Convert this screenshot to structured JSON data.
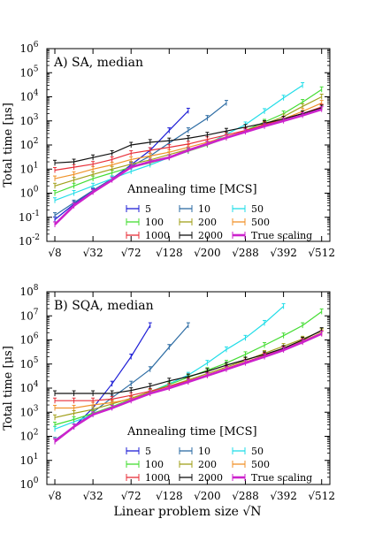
{
  "x_axis_label": "Linear problem size √N",
  "chart_data": [
    {
      "type": "line",
      "title": "A) SA, median",
      "ylabel": "Total time [μs]",
      "yscale": "log",
      "ylim": [
        0.01,
        1000000
      ],
      "ytick_exponents": [
        -2,
        -1,
        0,
        1,
        2,
        3,
        4,
        5,
        6
      ],
      "xscale": "sqrt",
      "x_ticks": [
        8,
        32,
        72,
        128,
        200,
        288,
        392,
        512
      ],
      "x_tick_labels": [
        "√8",
        "√32",
        "√72",
        "√128",
        "√200",
        "√288",
        "√392",
        "√512"
      ],
      "legend_title": "Annealing time [MCS]",
      "legend_location": "lower-center",
      "series": [
        {
          "name": "5",
          "color": "#1f1fd6",
          "x": [
            8,
            18,
            32,
            50,
            72,
            98,
            128,
            162
          ],
          "y": [
            0.08,
            0.35,
            1.2,
            4,
            15,
            60,
            400,
            2600
          ]
        },
        {
          "name": "10",
          "color": "#2e6da4",
          "x": [
            8,
            18,
            32,
            50,
            72,
            98,
            128,
            162,
            200,
            242
          ],
          "y": [
            0.12,
            0.4,
            1.3,
            4,
            13,
            35,
            120,
            400,
            1300,
            5500
          ]
        },
        {
          "name": "50",
          "color": "#22dde8",
          "x": [
            8,
            18,
            32,
            50,
            72,
            98,
            128,
            162,
            200,
            242,
            288,
            338,
            392,
            450
          ],
          "y": [
            0.5,
            1,
            2,
            4,
            8,
            15,
            30,
            55,
            110,
            280,
            700,
            2500,
            9000,
            30000
          ]
        },
        {
          "name": "100",
          "color": "#44dd33",
          "x": [
            8,
            18,
            32,
            50,
            72,
            98,
            128,
            162,
            200,
            242,
            288,
            338,
            392,
            450,
            512
          ],
          "y": [
            1,
            2,
            4,
            7,
            12,
            18,
            30,
            55,
            100,
            200,
            400,
            900,
            2000,
            6000,
            20000
          ]
        },
        {
          "name": "200",
          "color": "#a2a01c",
          "x": [
            8,
            18,
            32,
            50,
            72,
            98,
            128,
            162,
            200,
            242,
            288,
            338,
            392,
            450,
            512
          ],
          "y": [
            2,
            3.5,
            6,
            10,
            16,
            24,
            40,
            65,
            110,
            200,
            370,
            750,
            1500,
            4000,
            10000
          ]
        },
        {
          "name": "500",
          "color": "#f0922a",
          "x": [
            8,
            18,
            32,
            50,
            72,
            98,
            128,
            162,
            200,
            242,
            288,
            338,
            392,
            450,
            512
          ],
          "y": [
            4,
            6,
            10,
            15,
            25,
            35,
            50,
            80,
            130,
            220,
            380,
            700,
            1200,
            2500,
            5500
          ]
        },
        {
          "name": "1000",
          "color": "#e8303a",
          "x": [
            8,
            18,
            32,
            50,
            72,
            98,
            128,
            162,
            200,
            242,
            288,
            338,
            392,
            450,
            512
          ],
          "y": [
            9,
            12,
            16,
            25,
            45,
            60,
            80,
            110,
            170,
            260,
            400,
            700,
            1200,
            2000,
            3800
          ]
        },
        {
          "name": "2000",
          "color": "#111111",
          "x": [
            8,
            18,
            32,
            50,
            72,
            98,
            128,
            162,
            200,
            242,
            288,
            338,
            392,
            450,
            512
          ],
          "y": [
            18,
            20,
            30,
            45,
            100,
            130,
            150,
            190,
            260,
            380,
            550,
            800,
            1200,
            2000,
            3500
          ]
        },
        {
          "name": "True scaling",
          "color": "#cc22cc",
          "x": [
            8,
            18,
            32,
            50,
            72,
            98,
            128,
            162,
            200,
            242,
            288,
            338,
            392,
            450,
            512
          ],
          "y": [
            0.05,
            0.3,
            1.1,
            3.5,
            12,
            20,
            30,
            60,
            110,
            200,
            350,
            600,
            1000,
            1700,
            3000
          ]
        }
      ]
    },
    {
      "type": "line",
      "title": "B) SQA, median",
      "ylabel": "Total time [μs]",
      "yscale": "log",
      "ylim": [
        1,
        100000000
      ],
      "ytick_exponents": [
        0,
        1,
        2,
        3,
        4,
        5,
        6,
        7,
        8
      ],
      "xscale": "sqrt",
      "x_ticks": [
        8,
        32,
        72,
        128,
        200,
        288,
        392,
        512
      ],
      "x_tick_labels": [
        "√8",
        "√32",
        "√72",
        "√128",
        "√200",
        "√288",
        "√392",
        "√512"
      ],
      "legend_title": "Annealing time [MCS]",
      "legend_location": "lower-center",
      "series": [
        {
          "name": "5",
          "color": "#1f1fd6",
          "x": [
            8,
            18,
            32,
            50,
            72,
            98
          ],
          "y": [
            60,
            250,
            1500,
            15000,
            200000,
            4000000
          ]
        },
        {
          "name": "10",
          "color": "#2e6da4",
          "x": [
            8,
            18,
            32,
            50,
            72,
            98,
            128,
            162
          ],
          "y": [
            70,
            250,
            1000,
            4000,
            15000,
            60000,
            500000,
            4000000
          ]
        },
        {
          "name": "50",
          "color": "#22dde8",
          "x": [
            8,
            18,
            32,
            50,
            72,
            98,
            128,
            162,
            200,
            242,
            288,
            338,
            392
          ],
          "y": [
            200,
            400,
            800,
            1600,
            3500,
            7000,
            15000,
            35000,
            110000,
            400000,
            1200000,
            5000000,
            25000000
          ]
        },
        {
          "name": "100",
          "color": "#44dd33",
          "x": [
            8,
            18,
            32,
            50,
            72,
            98,
            128,
            162,
            200,
            242,
            288,
            338,
            392,
            450,
            512
          ],
          "y": [
            300,
            500,
            900,
            1700,
            3500,
            7000,
            14000,
            28000,
            55000,
            110000,
            250000,
            600000,
            1500000,
            4000000,
            15000000
          ]
        },
        {
          "name": "200",
          "color": "#a2a01c",
          "x": [
            8,
            18,
            32,
            50,
            72,
            98,
            128,
            162,
            200,
            242,
            288,
            338,
            392,
            450,
            512
          ],
          "y": [
            600,
            900,
            1300,
            2200,
            3800,
            7000,
            12000,
            22000,
            40000,
            75000,
            140000,
            280000,
            550000,
            1100000,
            2300000
          ]
        },
        {
          "name": "500",
          "color": "#f0922a",
          "x": [
            8,
            18,
            32,
            50,
            72,
            98,
            128,
            162,
            200,
            242,
            288,
            338,
            392,
            450,
            512
          ],
          "y": [
            1500,
            1500,
            2000,
            2500,
            3500,
            6000,
            10000,
            18000,
            35000,
            65000,
            120000,
            230000,
            450000,
            900000,
            2000000
          ]
        },
        {
          "name": "1000",
          "color": "#e8303a",
          "x": [
            8,
            18,
            32,
            50,
            72,
            98,
            128,
            162,
            200,
            242,
            288,
            338,
            392,
            450,
            512
          ],
          "y": [
            3000,
            3000,
            3000,
            3500,
            5000,
            7500,
            12000,
            20000,
            35000,
            65000,
            120000,
            220000,
            420000,
            850000,
            1800000
          ]
        },
        {
          "name": "2000",
          "color": "#111111",
          "x": [
            8,
            18,
            32,
            50,
            72,
            98,
            128,
            162,
            200,
            242,
            288,
            338,
            392,
            450,
            512
          ],
          "y": [
            6000,
            6000,
            6000,
            6000,
            8000,
            12000,
            20000,
            30000,
            50000,
            90000,
            150000,
            250000,
            450000,
            1000000,
            2500000
          ]
        },
        {
          "name": "True scaling",
          "color": "#cc22cc",
          "x": [
            8,
            18,
            32,
            50,
            72,
            98,
            128,
            162,
            200,
            242,
            288,
            338,
            392,
            450,
            512
          ],
          "y": [
            60,
            250,
            800,
            1500,
            3000,
            6000,
            10000,
            18000,
            33000,
            60000,
            110000,
            200000,
            380000,
            800000,
            1800000
          ]
        }
      ]
    }
  ]
}
